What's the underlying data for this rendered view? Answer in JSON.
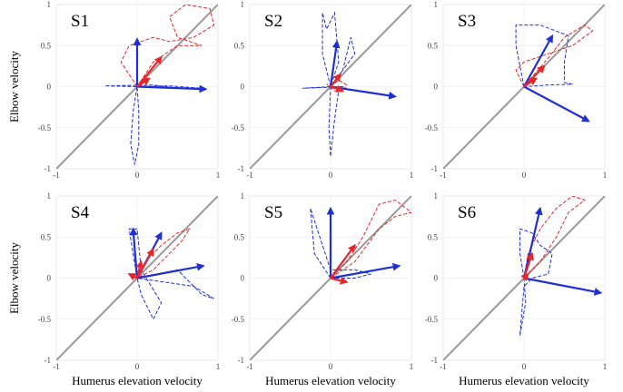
{
  "chart_data": [
    {
      "type": "vector",
      "title": "S1",
      "ylabel": "Elbow velocity",
      "xlim": [
        -1,
        1
      ],
      "ylim": [
        -1,
        1
      ],
      "xticks": [
        -1,
        0,
        1
      ],
      "yticks": [
        -1,
        -0.5,
        0,
        0.5,
        1
      ],
      "grid": true,
      "diagonal": {
        "color": "#999999",
        "x": [
          -1,
          1
        ],
        "y": [
          -1,
          1
        ]
      },
      "series": [
        {
          "color": "#1f2fd6",
          "x": [
            0,
            -0.05,
            -0.08,
            -0.03,
            0.02,
            0.02,
            0,
            -0.4,
            0.2,
            0.5,
            0.8,
            0.4,
            0
          ],
          "y": [
            0,
            -0.3,
            -0.7,
            -0.95,
            -0.7,
            -0.3,
            0,
            0.01,
            0.02,
            -0.02,
            -0.02,
            0.01,
            0
          ]
        },
        {
          "color": "#e8262a",
          "x": [
            0,
            -0.2,
            -0.1,
            0.2,
            0.4,
            0.7,
            0.95,
            0.9,
            0.6,
            0.4,
            0.5,
            0.8,
            0.5,
            0.2,
            0
          ],
          "y": [
            0,
            0.3,
            0.5,
            0.6,
            0.55,
            0.6,
            0.75,
            0.95,
            1.0,
            0.85,
            0.6,
            0.5,
            0.5,
            0.3,
            0
          ]
        }
      ],
      "arrows": [
        {
          "color": "#1f2fd6",
          "x": [
            0,
            0.85
          ],
          "y": [
            0.58,
            -0.03
          ]
        },
        {
          "color": "#e8262a",
          "x": [
            0.3,
            0.15
          ],
          "y": [
            0.36,
            0.1
          ]
        }
      ]
    },
    {
      "type": "vector",
      "title": "S2",
      "xlim": [
        -1,
        1
      ],
      "ylim": [
        -1,
        1
      ],
      "xticks": [
        -1,
        0,
        1
      ],
      "yticks": [
        -1,
        -0.5,
        0,
        0.5,
        1
      ],
      "grid": true,
      "diagonal": {
        "color": "#999999",
        "x": [
          -1,
          1
        ],
        "y": [
          -1,
          1
        ]
      },
      "series": [
        {
          "color": "#1f2fd6",
          "x": [
            0,
            -0.1,
            -0.1,
            -0.05,
            0.05,
            0.1,
            0,
            -0.02,
            0,
            0.05,
            0.1,
            0.15,
            -0.35,
            0,
            0.3,
            0.25,
            0.15,
            0
          ],
          "y": [
            0,
            0.4,
            0.9,
            0.7,
            0.9,
            0.3,
            0,
            -0.5,
            -0.85,
            -0.4,
            -0.05,
            0,
            -0.02,
            0,
            0.4,
            0.6,
            0.2,
            0
          ]
        },
        {
          "color": "#e8262a",
          "x": [
            0,
            0.1,
            0.2,
            0.15,
            0.05,
            -0.05,
            0
          ],
          "y": [
            0,
            0.08,
            0.02,
            -0.06,
            -0.05,
            0.03,
            0
          ]
        }
      ],
      "arrows": [
        {
          "color": "#1f2fd6",
          "x": [
            0.08,
            0.8
          ],
          "y": [
            0.55,
            -0.12
          ]
        },
        {
          "color": "#e8262a",
          "x": [
            0.12,
            0.15
          ],
          "y": [
            0.15,
            -0.05
          ]
        }
      ]
    },
    {
      "type": "vector",
      "title": "S3",
      "xlim": [
        -1,
        1
      ],
      "ylim": [
        -1,
        1
      ],
      "xticks": [
        -1,
        0,
        1
      ],
      "yticks": [
        -1,
        -0.5,
        0,
        0.5,
        1
      ],
      "grid": true,
      "diagonal": {
        "color": "#999999",
        "x": [
          -1,
          1
        ],
        "y": [
          -1,
          1
        ]
      },
      "series": [
        {
          "color": "#1f2fd6",
          "x": [
            0,
            -0.1,
            -0.1,
            0.2,
            0.55,
            0.5,
            0.5,
            0.6,
            0.3,
            0
          ],
          "y": [
            0,
            0.5,
            0.75,
            0.75,
            0.62,
            0.3,
            0.05,
            0.03,
            0.02,
            0
          ]
        },
        {
          "color": "#e8262a",
          "x": [
            0,
            -0.05,
            -0.1,
            0,
            0.3,
            0.6,
            0.85,
            0.75,
            0.5,
            0.3,
            0
          ],
          "y": [
            0,
            0.1,
            0.2,
            0.3,
            0.4,
            0.5,
            0.68,
            0.75,
            0.6,
            0.35,
            0
          ]
        }
      ],
      "arrows": [
        {
          "color": "#1f2fd6",
          "x": [
            0.35,
            0.8
          ],
          "y": [
            0.62,
            -0.42
          ]
        },
        {
          "color": "#e8262a",
          "x": [
            0.25,
            0.15
          ],
          "y": [
            0.25,
            0.1
          ]
        }
      ]
    },
    {
      "type": "vector",
      "title": "S4",
      "ylabel": "Elbow velocity",
      "xlabel": "Humerus elevation velocity",
      "xlim": [
        -1,
        1
      ],
      "ylim": [
        -1,
        1
      ],
      "xticks": [
        -1,
        0,
        1
      ],
      "yticks": [
        -1,
        -0.5,
        0,
        0.5,
        1
      ],
      "grid": true,
      "diagonal": {
        "color": "#999999",
        "x": [
          -1,
          1
        ],
        "y": [
          -1,
          1
        ]
      },
      "series": [
        {
          "color": "#1f2fd6",
          "x": [
            0,
            -0.1,
            0,
            0.05,
            0.3,
            0.2,
            0.05,
            0,
            0.5,
            0.8,
            0.95,
            0.7,
            0
          ],
          "y": [
            0,
            0.6,
            0.6,
            0.1,
            -0.3,
            -0.5,
            -0.2,
            0,
            0.1,
            -0.2,
            -0.25,
            -0.1,
            0
          ]
        },
        {
          "color": "#e8262a",
          "x": [
            0,
            0.1,
            0.3,
            0.5,
            0.65,
            0.55,
            0.2,
            0
          ],
          "y": [
            0,
            0.2,
            0.4,
            0.55,
            0.6,
            0.45,
            0.1,
            0
          ]
        }
      ],
      "arrows": [
        {
          "color": "#1f2fd6",
          "x": [
            -0.05,
            0.82,
            0.3
          ],
          "y": [
            0.6,
            0.15,
            0.55
          ]
        },
        {
          "color": "#e8262a",
          "x": [
            0.2,
            0.05,
            -0.1
          ],
          "y": [
            0.35,
            0.2,
            0.05
          ]
        }
      ]
    },
    {
      "type": "vector",
      "title": "S5",
      "xlabel": "Humerus elevation velocity",
      "xlim": [
        -1,
        1
      ],
      "ylim": [
        -1,
        1
      ],
      "xticks": [
        -1,
        0,
        1
      ],
      "yticks": [
        -1,
        -0.5,
        0,
        0.5,
        1
      ],
      "grid": true,
      "diagonal": {
        "color": "#999999",
        "x": [
          -1,
          1
        ],
        "y": [
          -1,
          1
        ]
      },
      "series": [
        {
          "color": "#1f2fd6",
          "x": [
            0,
            -0.2,
            -0.25,
            -0.1,
            0,
            0.3,
            0.5,
            0.3,
            0
          ],
          "y": [
            0,
            0.3,
            0.85,
            0.4,
            0.1,
            0.1,
            0.05,
            0,
            0
          ]
        },
        {
          "color": "#e8262a",
          "x": [
            0,
            0.2,
            0.4,
            0.6,
            0.8,
            1,
            0.8,
            0.6,
            0.3,
            0
          ],
          "y": [
            0,
            0.2,
            0.5,
            0.9,
            0.95,
            0.8,
            0.75,
            0.6,
            0.2,
            0
          ]
        }
      ],
      "arrows": [
        {
          "color": "#1f2fd6",
          "x": [
            0,
            0.85
          ],
          "y": [
            0.85,
            0.15
          ]
        },
        {
          "color": "#e8262a",
          "x": [
            0.3,
            0.2
          ],
          "y": [
            0.4,
            -0.05
          ]
        }
      ]
    },
    {
      "type": "vector",
      "title": "S6",
      "xlabel": "Humerus elevation velocity",
      "xlim": [
        -1,
        1
      ],
      "ylim": [
        -1,
        1
      ],
      "xticks": [
        -1,
        0,
        1
      ],
      "yticks": [
        -1,
        -0.5,
        0,
        0.5,
        1
      ],
      "grid": true,
      "diagonal": {
        "color": "#999999",
        "x": [
          -1,
          1
        ],
        "y": [
          -1,
          1
        ]
      },
      "series": [
        {
          "color": "#1f2fd6",
          "x": [
            0,
            -0.05,
            -0.05,
            0.1,
            0.2,
            0.35,
            0.3,
            0.1,
            0,
            -0.05,
            0.02,
            0
          ],
          "y": [
            0,
            0.3,
            0.6,
            0.55,
            0.4,
            0.3,
            0.05,
            0,
            -0.1,
            -0.7,
            -0.3,
            0
          ]
        },
        {
          "color": "#e8262a",
          "x": [
            0,
            0.05,
            0.2,
            0.4,
            0.6,
            0.75,
            0.55,
            0.4,
            0.2,
            0
          ],
          "y": [
            0,
            0.3,
            0.6,
            0.85,
            1,
            0.95,
            0.8,
            0.5,
            0.2,
            0
          ]
        }
      ],
      "arrows": [
        {
          "color": "#1f2fd6",
          "x": [
            0.2,
            0.95
          ],
          "y": [
            0.85,
            -0.18
          ]
        },
        {
          "color": "#e8262a",
          "x": [
            0.1,
            0.05
          ],
          "y": [
            0.3,
            0.05
          ]
        }
      ]
    }
  ]
}
